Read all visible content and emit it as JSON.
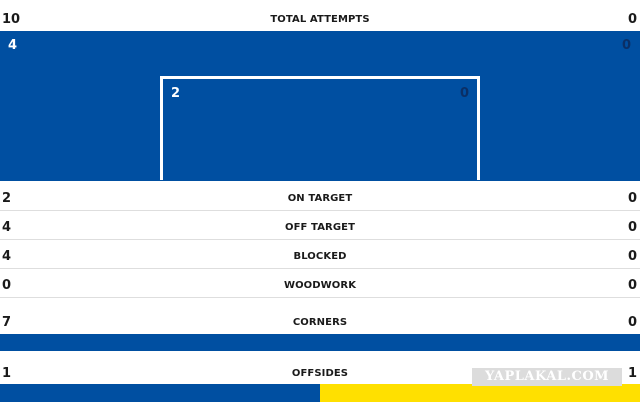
{
  "stats": {
    "total_attempts": {
      "label": "TOTAL ATTEMPTS",
      "left": "10",
      "right": "0"
    },
    "pitch": {
      "box_left": "4",
      "box_right": "0",
      "goal_left": "2",
      "goal_right": "0"
    },
    "on_target": {
      "label": "ON TARGET",
      "left": "2",
      "right": "0"
    },
    "off_target": {
      "label": "OFF TARGET",
      "left": "4",
      "right": "0"
    },
    "blocked": {
      "label": "BLOCKED",
      "left": "4",
      "right": "0"
    },
    "woodwork": {
      "label": "WOODWORK",
      "left": "0",
      "right": "0"
    },
    "corners": {
      "label": "CORNERS",
      "left": "7",
      "right": "0",
      "left_share": 1.0
    },
    "offsides": {
      "label": "OFFSIDES",
      "left": "1",
      "right": "1",
      "left_share": 0.5
    }
  },
  "colors": {
    "home": "#004fa1",
    "away": "#ffe000"
  },
  "watermark": "YAPLAKAL.COM"
}
